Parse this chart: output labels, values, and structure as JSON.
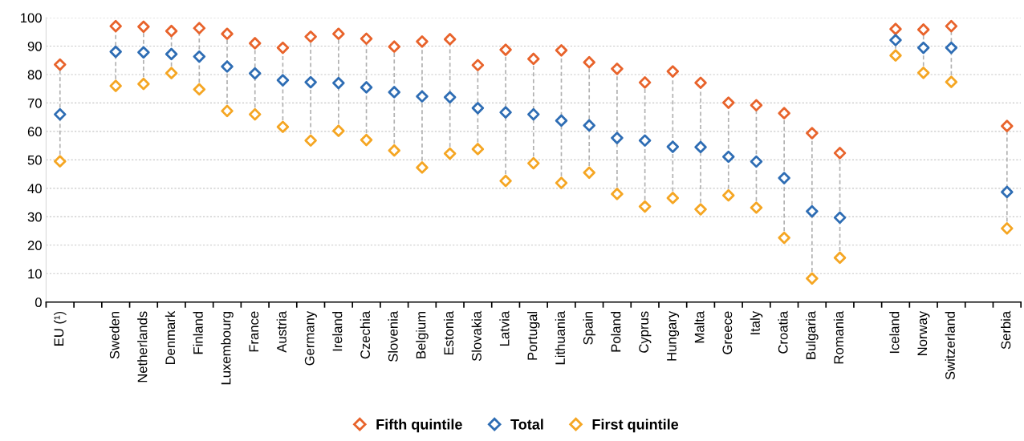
{
  "chart_data": {
    "type": "scatter",
    "categories": [
      "EU (¹)",
      null,
      "Sweden",
      "Netherlands",
      "Denmark",
      "Finland",
      "Luxembourg",
      "France",
      "Austria",
      "Germany",
      "Ireland",
      "Czechia",
      "Slovenia",
      "Belgium",
      "Estonia",
      "Slovakia",
      "Latvia",
      "Portugal",
      "Lithuania",
      "Spain",
      "Poland",
      "Cyprus",
      "Hungary",
      "Malta",
      "Greece",
      "Italy",
      "Croatia",
      "Bulgaria",
      "Romania",
      null,
      "Iceland",
      "Norway",
      "Switzerland",
      null,
      "Serbia"
    ],
    "series": [
      {
        "name": "Fifth quintile",
        "color": "#e8632b",
        "values": [
          83.5,
          null,
          97,
          96.8,
          95.3,
          96.3,
          94.3,
          91,
          89.4,
          93.3,
          94.3,
          92.6,
          89.8,
          91.6,
          92.4,
          83.3,
          88.7,
          85.5,
          88.5,
          84.3,
          82,
          77.2,
          81.1,
          77.1,
          70.1,
          69.2,
          66.4,
          59.4,
          52.4,
          null,
          96,
          95.8,
          97,
          null,
          61.9
        ]
      },
      {
        "name": "Total",
        "color": "#2e6db4",
        "values": [
          66,
          null,
          88,
          87.8,
          87.2,
          86.3,
          82.8,
          80.4,
          78,
          77.3,
          77,
          75.5,
          73.8,
          72.3,
          72,
          68.2,
          66.7,
          66,
          63.8,
          62.1,
          57.7,
          56.8,
          54.6,
          54.5,
          51.1,
          49.4,
          43.6,
          31.9,
          29.7,
          null,
          92.1,
          89.4,
          89.4,
          null,
          38.7
        ]
      },
      {
        "name": "First quintile",
        "color": "#f5a623",
        "values": [
          49.5,
          null,
          76,
          76.7,
          80.5,
          74.8,
          67.2,
          66,
          61.6,
          56.8,
          60.2,
          57,
          53.3,
          47.3,
          52.2,
          53.8,
          42.6,
          48.8,
          41.9,
          45.5,
          38,
          33.6,
          36.6,
          32.6,
          37.5,
          33.2,
          22.6,
          8.3,
          15.6,
          null,
          86.7,
          80.6,
          77.4,
          null,
          25.9
        ]
      }
    ],
    "ylim": [
      0,
      100
    ],
    "yticks": [
      0,
      10,
      20,
      30,
      40,
      50,
      60,
      70,
      80,
      90,
      100
    ],
    "grid": "y",
    "legend": "bottom",
    "marker": "diamond"
  }
}
